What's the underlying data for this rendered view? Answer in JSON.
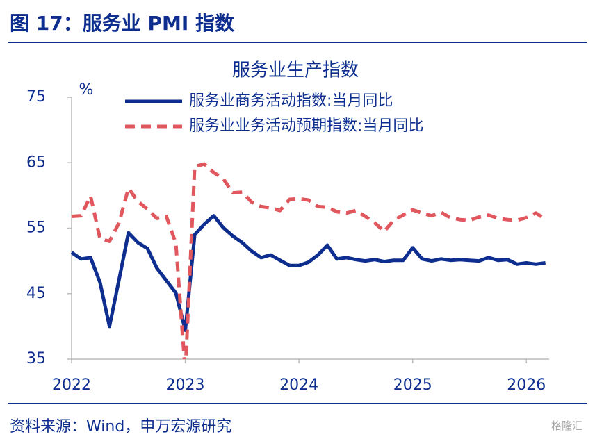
{
  "header": {
    "title": "图 17：服务业 PMI 指数"
  },
  "chart_data": {
    "type": "line",
    "title": "服务业生产指数",
    "ylabel": "%",
    "x": [
      2022,
      2022.083,
      2022.167,
      2022.25,
      2022.333,
      2022.417,
      2022.5,
      2022.583,
      2022.667,
      2022.75,
      2022.833,
      2022.917,
      2023,
      2023.083,
      2023.167,
      2023.25,
      2023.333,
      2023.417,
      2023.5,
      2023.583,
      2023.667,
      2023.75,
      2023.833,
      2023.917,
      2024,
      2024.083,
      2024.167,
      2024.25,
      2024.333,
      2024.417,
      2024.5,
      2024.583,
      2024.667,
      2024.75,
      2024.833,
      2024.917,
      2025,
      2025.083,
      2025.167,
      2025.25,
      2025.333,
      2025.417,
      2025.5,
      2025.583,
      2025.667,
      2025.75,
      2025.833,
      2025.917,
      2026,
      2026.083,
      2026.167
    ],
    "series": [
      {
        "name": "服务业商务活动指数:当月同比",
        "color": "#0d2d8f",
        "dash": false,
        "values": [
          51.3,
          50.3,
          50.5,
          46.7,
          40.0,
          47.1,
          54.3,
          52.8,
          51.9,
          48.9,
          47.0,
          45.1,
          39.4,
          54.0,
          55.6,
          56.9,
          55.1,
          53.8,
          52.8,
          51.5,
          50.5,
          50.9,
          50.1,
          49.3,
          49.3,
          49.8,
          50.9,
          52.4,
          50.3,
          50.5,
          50.2,
          50.0,
          50.2,
          49.9,
          50.1,
          50.1,
          52.0,
          50.3,
          50.0,
          50.3,
          50.1,
          50.2,
          50.1,
          50.0,
          50.5,
          50.1,
          50.2,
          49.5,
          49.7,
          49.5,
          49.7
        ]
      },
      {
        "name": "服务业业务活动预期指数:当月同比",
        "color": "#e0585e",
        "dash": true,
        "values": [
          56.8,
          56.9,
          59.9,
          53.4,
          53.0,
          55.8,
          61.1,
          59.1,
          57.9,
          56.5,
          56.8,
          52.7,
          33.0,
          64.4,
          64.8,
          63.5,
          62.6,
          60.4,
          60.5,
          59.0,
          58.3,
          58.1,
          57.7,
          59.4,
          59.5,
          59.3,
          58.3,
          58.2,
          57.5,
          57.3,
          57.7,
          56.8,
          55.8,
          54.5,
          56.2,
          57.0,
          57.8,
          57.3,
          56.9,
          57.4,
          56.6,
          56.3,
          56.2,
          56.7,
          57.0,
          56.5,
          56.3,
          56.2,
          56.6,
          57.3,
          56.4
        ]
      }
    ],
    "xlim": [
      2022,
      2026.2
    ],
    "xticks": [
      2022,
      2023,
      2024,
      2025,
      2026
    ],
    "ylim": [
      35,
      75
    ],
    "yticks": [
      35,
      45,
      55,
      65,
      75
    ],
    "grid": false
  },
  "footer": {
    "source": "资料来源：Wind，申万宏源研究",
    "watermark": "格隆汇"
  }
}
